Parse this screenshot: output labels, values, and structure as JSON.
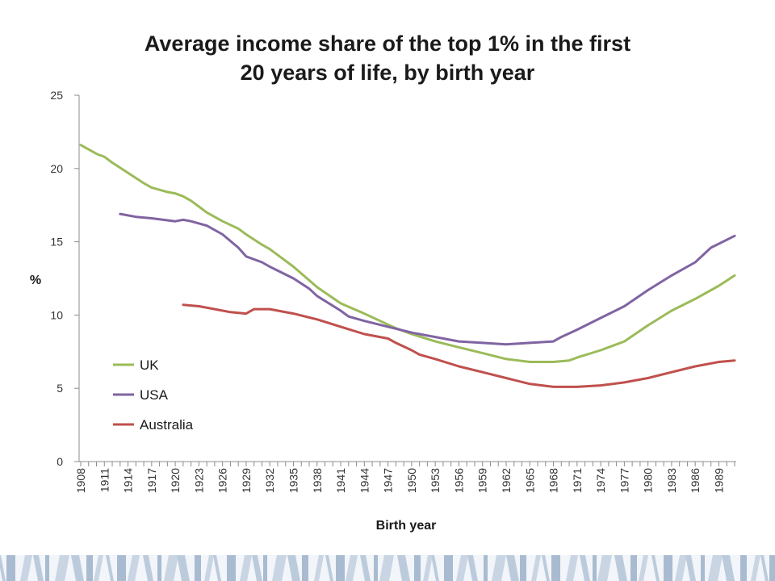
{
  "chart_data": {
    "type": "line",
    "title_lines": [
      "Average income share of the top 1% in the first",
      "20 years of life, by birth year"
    ],
    "xlabel": "Birth year",
    "ylabel": "%",
    "ylim": [
      0,
      25
    ],
    "y_ticks": [
      "0",
      "5",
      "10",
      "15",
      "20",
      "25"
    ],
    "xlim": [
      1908,
      1991
    ],
    "x_tick_labels": [
      "1908",
      "1911",
      "1914",
      "1917",
      "1920",
      "1923",
      "1926",
      "1929",
      "1932",
      "1935",
      "1938",
      "1941",
      "1944",
      "1947",
      "1950",
      "1953",
      "1956",
      "1959",
      "1962",
      "1965",
      "1968",
      "1971",
      "1974",
      "1977",
      "1980",
      "1983",
      "1986",
      "1989"
    ],
    "grid": false,
    "legend_position": "bottom-left",
    "series": [
      {
        "name": "UK",
        "color": "#9bbb59",
        "points": [
          [
            1908,
            21.6
          ],
          [
            1910,
            21.0
          ],
          [
            1911,
            20.8
          ],
          [
            1912,
            20.4
          ],
          [
            1914,
            19.7
          ],
          [
            1916,
            19.0
          ],
          [
            1917,
            18.7
          ],
          [
            1919,
            18.4
          ],
          [
            1920,
            18.3
          ],
          [
            1921,
            18.1
          ],
          [
            1922,
            17.8
          ],
          [
            1923,
            17.4
          ],
          [
            1924,
            17.0
          ],
          [
            1926,
            16.4
          ],
          [
            1928,
            15.9
          ],
          [
            1929,
            15.5
          ],
          [
            1931,
            14.8
          ],
          [
            1932,
            14.5
          ],
          [
            1935,
            13.3
          ],
          [
            1938,
            11.9
          ],
          [
            1941,
            10.8
          ],
          [
            1944,
            10.1
          ],
          [
            1946,
            9.6
          ],
          [
            1948,
            9.1
          ],
          [
            1950,
            8.7
          ],
          [
            1953,
            8.2
          ],
          [
            1956,
            7.8
          ],
          [
            1959,
            7.4
          ],
          [
            1962,
            7.0
          ],
          [
            1965,
            6.8
          ],
          [
            1968,
            6.8
          ],
          [
            1970,
            6.9
          ],
          [
            1971,
            7.1
          ],
          [
            1974,
            7.6
          ],
          [
            1977,
            8.2
          ],
          [
            1980,
            9.3
          ],
          [
            1983,
            10.3
          ],
          [
            1986,
            11.1
          ],
          [
            1989,
            12.0
          ],
          [
            1991,
            12.7
          ]
        ]
      },
      {
        "name": "USA",
        "color": "#8064a2",
        "points": [
          [
            1913,
            16.9
          ],
          [
            1915,
            16.7
          ],
          [
            1917,
            16.6
          ],
          [
            1920,
            16.4
          ],
          [
            1921,
            16.5
          ],
          [
            1922,
            16.4
          ],
          [
            1924,
            16.1
          ],
          [
            1926,
            15.5
          ],
          [
            1928,
            14.6
          ],
          [
            1929,
            14.0
          ],
          [
            1931,
            13.6
          ],
          [
            1932,
            13.3
          ],
          [
            1935,
            12.5
          ],
          [
            1937,
            11.8
          ],
          [
            1938,
            11.3
          ],
          [
            1941,
            10.3
          ],
          [
            1942,
            9.9
          ],
          [
            1944,
            9.6
          ],
          [
            1947,
            9.2
          ],
          [
            1950,
            8.8
          ],
          [
            1953,
            8.5
          ],
          [
            1956,
            8.2
          ],
          [
            1959,
            8.1
          ],
          [
            1962,
            8.0
          ],
          [
            1965,
            8.1
          ],
          [
            1968,
            8.2
          ],
          [
            1969,
            8.5
          ],
          [
            1971,
            9.0
          ],
          [
            1974,
            9.8
          ],
          [
            1977,
            10.6
          ],
          [
            1980,
            11.7
          ],
          [
            1983,
            12.7
          ],
          [
            1986,
            13.6
          ],
          [
            1988,
            14.6
          ],
          [
            1991,
            15.4
          ]
        ]
      },
      {
        "name": "Australia",
        "color": "#c0504d",
        "points": [
          [
            1921,
            10.7
          ],
          [
            1923,
            10.6
          ],
          [
            1925,
            10.4
          ],
          [
            1927,
            10.2
          ],
          [
            1929,
            10.1
          ],
          [
            1930,
            10.4
          ],
          [
            1932,
            10.4
          ],
          [
            1935,
            10.1
          ],
          [
            1938,
            9.7
          ],
          [
            1941,
            9.2
          ],
          [
            1944,
            8.7
          ],
          [
            1947,
            8.4
          ],
          [
            1948,
            8.1
          ],
          [
            1950,
            7.6
          ],
          [
            1951,
            7.3
          ],
          [
            1953,
            7.0
          ],
          [
            1956,
            6.5
          ],
          [
            1959,
            6.1
          ],
          [
            1962,
            5.7
          ],
          [
            1965,
            5.3
          ],
          [
            1968,
            5.1
          ],
          [
            1971,
            5.1
          ],
          [
            1974,
            5.2
          ],
          [
            1977,
            5.4
          ],
          [
            1980,
            5.7
          ],
          [
            1983,
            6.1
          ],
          [
            1986,
            6.5
          ],
          [
            1989,
            6.8
          ],
          [
            1991,
            6.9
          ]
        ]
      }
    ]
  }
}
